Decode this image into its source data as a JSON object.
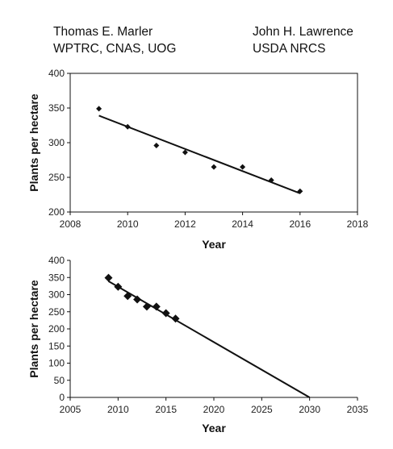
{
  "authors": {
    "left": {
      "name": "Thomas E. Marler",
      "affiliation": "WPTRC, CNAS, UOG"
    },
    "right": {
      "name": "John H. Lawrence",
      "affiliation": "USDA NRCS"
    }
  },
  "chart_data": [
    {
      "type": "scatter",
      "xlabel": "Year",
      "ylabel": "Plants per hectare",
      "xlim": [
        2008,
        2018
      ],
      "ylim": [
        200,
        400
      ],
      "xticks": [
        2008,
        2010,
        2012,
        2014,
        2016,
        2018
      ],
      "yticks": [
        200,
        250,
        300,
        350,
        400
      ],
      "points": {
        "x": [
          2009,
          2010,
          2011,
          2012,
          2013,
          2014,
          2015,
          2016
        ],
        "y": [
          349,
          323,
          296,
          286,
          265,
          265,
          246,
          230
        ]
      },
      "trendline": {
        "x": [
          2009,
          2016
        ],
        "y": [
          339,
          227
        ]
      },
      "grid": false,
      "border": true,
      "marker": "diamond",
      "color": "#111111"
    },
    {
      "type": "scatter",
      "xlabel": "Year",
      "ylabel": "Plants per hectare",
      "xlim": [
        2005,
        2035
      ],
      "ylim": [
        0,
        400
      ],
      "xticks": [
        2005,
        2010,
        2015,
        2020,
        2025,
        2030,
        2035
      ],
      "yticks": [
        0,
        50,
        100,
        150,
        200,
        250,
        300,
        350,
        400
      ],
      "points": {
        "x": [
          2009,
          2010,
          2011,
          2012,
          2013,
          2014,
          2015,
          2016
        ],
        "y": [
          349,
          323,
          296,
          286,
          265,
          265,
          246,
          230
        ]
      },
      "trendline": {
        "x": [
          2009,
          2030
        ],
        "y": [
          339,
          0
        ]
      },
      "grid": false,
      "border": false,
      "marker": "diamond",
      "color": "#111111"
    }
  ]
}
